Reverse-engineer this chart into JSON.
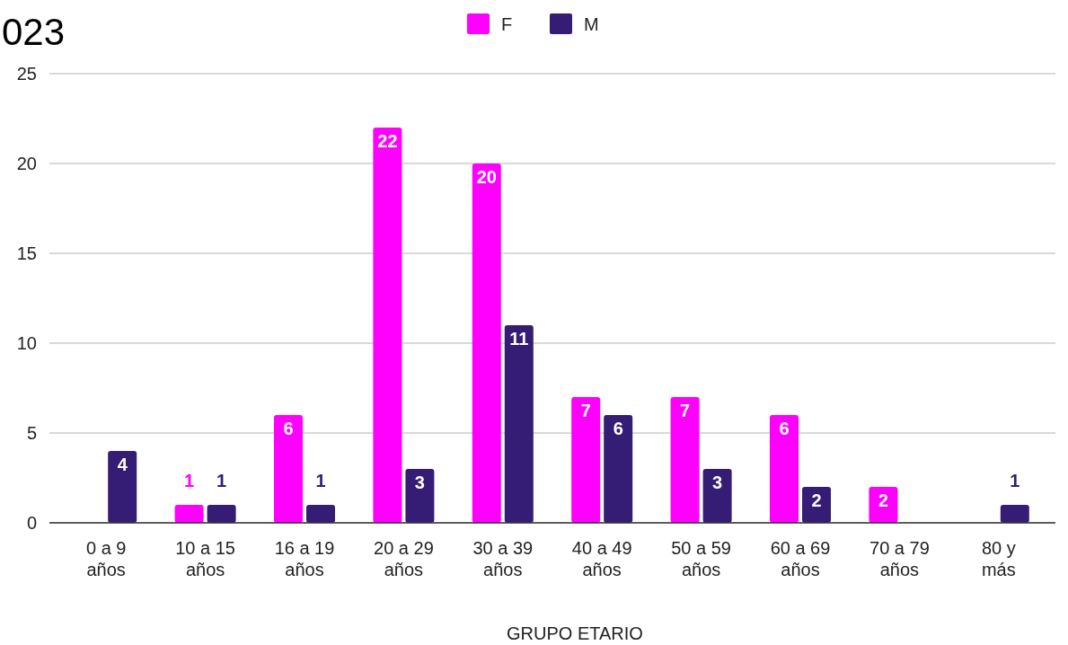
{
  "chart_data": {
    "type": "bar",
    "title": "023",
    "xlabel": "GRUPO ETARIO",
    "categories": [
      "0 a 9 años",
      "10 a 15 años",
      "16 a 19 años",
      "20 a 29 años",
      "30 a 39 años",
      "40 a 49 años",
      "50 a 59 años",
      "60 a 69 años",
      "70 a 79 años",
      "80 y más"
    ],
    "series": [
      {
        "name": "F",
        "color": "#ff00ff",
        "values": [
          null,
          1,
          6,
          22,
          20,
          7,
          7,
          6,
          2,
          null
        ]
      },
      {
        "name": "M",
        "color": "#351c75",
        "values": [
          4,
          1,
          1,
          3,
          11,
          6,
          3,
          2,
          null,
          1
        ]
      }
    ],
    "ylim": [
      0,
      25
    ],
    "yticks": [
      0,
      5,
      10,
      15,
      20,
      25
    ],
    "grid": "y",
    "legend": "top",
    "data_labels": true
  }
}
